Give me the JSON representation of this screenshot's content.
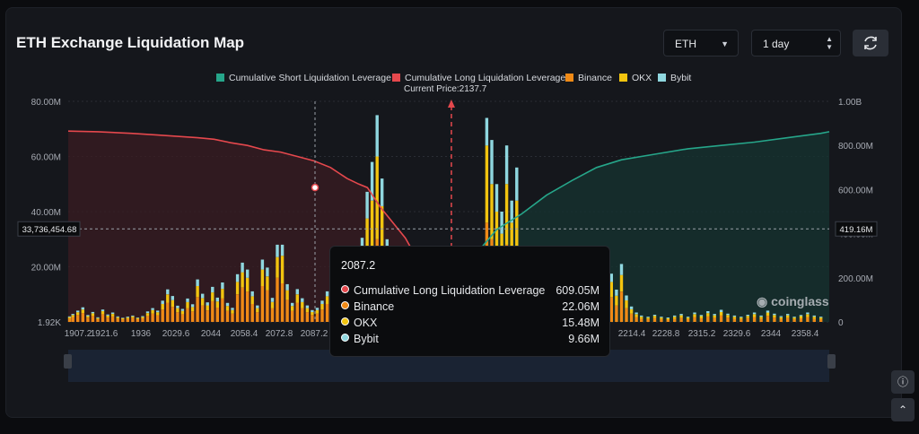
{
  "header": {
    "title": "ETH Exchange Liquidation Map"
  },
  "controls": {
    "symbol": "ETH",
    "timeframe": "1 day"
  },
  "legend": [
    {
      "label": "Cumulative Short Liquidation Leverage",
      "color": "#26a68a"
    },
    {
      "label": "Cumulative Long Liquidation Leverage",
      "color": "#e5484d"
    },
    {
      "label": "Binance",
      "color": "#f08a16"
    },
    {
      "label": "OKX",
      "color": "#f2c40f"
    },
    {
      "label": "Bybit",
      "color": "#8fd7df"
    }
  ],
  "current_price_label": "Current Price:2137.7",
  "crosshair": {
    "left_value": "33,736,454.68",
    "right_value": "419.16M"
  },
  "watermark": "coinglass",
  "tooltip": {
    "title": "2087.2",
    "rows": [
      {
        "name": "Cumulative Long Liquidation Leverage",
        "value": "609.05M",
        "color": "#e5484d"
      },
      {
        "name": "Binance",
        "value": "22.06M",
        "color": "#f08a16"
      },
      {
        "name": "OKX",
        "value": "15.48M",
        "color": "#f2c40f"
      },
      {
        "name": "Bybit",
        "value": "9.66M",
        "color": "#8fd7df"
      }
    ]
  },
  "chart_data": {
    "type": "bar",
    "title": "ETH Exchange Liquidation Map",
    "current_price": 2137.7,
    "x_tick_labels": [
      "1907.2",
      "1921.6",
      "1936",
      "2029.6",
      "2044",
      "2058.4",
      "2072.8",
      "2087.2",
      "2214.4",
      "2228.8",
      "2315.2",
      "2329.6",
      "2344",
      "2358.4"
    ],
    "left_axis": {
      "ticks": [
        "1.92K",
        "20.00M",
        "40.00M",
        "60.00M",
        "80.00M"
      ],
      "ylim": [
        0,
        80000000
      ]
    },
    "right_axis": {
      "ticks": [
        "0",
        "200.00M",
        "400.00M",
        "600.00M",
        "800.00M",
        "1.00B"
      ],
      "ylim": [
        0,
        1000000000
      ]
    },
    "x_range": [
      1907.2,
      2365
    ],
    "bars": [
      {
        "x": 1908,
        "binance": 1.2,
        "okx": 0.5,
        "bybit": 0.3
      },
      {
        "x": 1910,
        "binance": 1.8,
        "okx": 0.7,
        "bybit": 0.4
      },
      {
        "x": 1913,
        "binance": 2.5,
        "okx": 1.0,
        "bybit": 0.6
      },
      {
        "x": 1916,
        "binance": 3.2,
        "okx": 1.3,
        "bybit": 0.8
      },
      {
        "x": 1919,
        "binance": 1.5,
        "okx": 0.6,
        "bybit": 0.4
      },
      {
        "x": 1922,
        "binance": 2.2,
        "okx": 0.9,
        "bybit": 0.5
      },
      {
        "x": 1925,
        "binance": 1.0,
        "okx": 0.4,
        "bybit": 0.3
      },
      {
        "x": 1928,
        "binance": 2.8,
        "okx": 1.1,
        "bybit": 0.6
      },
      {
        "x": 1931,
        "binance": 1.6,
        "okx": 0.7,
        "bybit": 0.4
      },
      {
        "x": 1934,
        "binance": 2.0,
        "okx": 0.9,
        "bybit": 0.5
      },
      {
        "x": 1937,
        "binance": 1.2,
        "okx": 0.5,
        "bybit": 0.3
      },
      {
        "x": 1940,
        "binance": 0.9,
        "okx": 0.4,
        "bybit": 0.2
      },
      {
        "x": 1943,
        "binance": 1.1,
        "okx": 0.5,
        "bybit": 0.3
      },
      {
        "x": 1946,
        "binance": 1.4,
        "okx": 0.6,
        "bybit": 0.3
      },
      {
        "x": 1949,
        "binance": 1.0,
        "okx": 0.4,
        "bybit": 0.2
      },
      {
        "x": 1952,
        "binance": 1.3,
        "okx": 0.5,
        "bybit": 0.3
      },
      {
        "x": 1955,
        "binance": 2.2,
        "okx": 1.0,
        "bybit": 0.6
      },
      {
        "x": 1958,
        "binance": 3.0,
        "okx": 1.3,
        "bybit": 0.7
      },
      {
        "x": 1961,
        "binance": 2.4,
        "okx": 1.1,
        "bybit": 0.6
      },
      {
        "x": 1964,
        "binance": 4.5,
        "okx": 2.0,
        "bybit": 1.2
      },
      {
        "x": 1967,
        "binance": 7.0,
        "okx": 3.0,
        "bybit": 1.8
      },
      {
        "x": 1970,
        "binance": 5.5,
        "okx": 2.4,
        "bybit": 1.5
      },
      {
        "x": 1973,
        "binance": 3.5,
        "okx": 1.5,
        "bybit": 0.9
      },
      {
        "x": 1976,
        "binance": 2.8,
        "okx": 1.2,
        "bybit": 0.7
      },
      {
        "x": 1979,
        "binance": 5.0,
        "okx": 2.2,
        "bybit": 1.3
      },
      {
        "x": 1982,
        "binance": 3.8,
        "okx": 1.6,
        "bybit": 1.0
      },
      {
        "x": 1985,
        "binance": 9.0,
        "okx": 4.0,
        "bybit": 2.4
      },
      {
        "x": 1988,
        "binance": 6.0,
        "okx": 2.6,
        "bybit": 1.6
      },
      {
        "x": 1991,
        "binance": 4.2,
        "okx": 1.8,
        "bybit": 1.1
      },
      {
        "x": 1994,
        "binance": 7.5,
        "okx": 3.2,
        "bybit": 2.0
      },
      {
        "x": 1997,
        "binance": 5.2,
        "okx": 2.2,
        "bybit": 1.4
      },
      {
        "x": 2000,
        "binance": 8.5,
        "okx": 3.5,
        "bybit": 2.3
      },
      {
        "x": 2003,
        "binance": 4.0,
        "okx": 1.8,
        "bybit": 1.1
      },
      {
        "x": 2006,
        "binance": 3.0,
        "okx": 1.3,
        "bybit": 0.8
      },
      {
        "x": 2009,
        "binance": 10.0,
        "okx": 4.5,
        "bybit": 2.8
      },
      {
        "x": 2012,
        "binance": 12.5,
        "okx": 5.5,
        "bybit": 3.5
      },
      {
        "x": 2015,
        "binance": 11.0,
        "okx": 5.0,
        "bybit": 3.0
      },
      {
        "x": 2018,
        "binance": 6.5,
        "okx": 2.8,
        "bybit": 1.8
      },
      {
        "x": 2021,
        "binance": 3.5,
        "okx": 1.5,
        "bybit": 1.0
      },
      {
        "x": 2024,
        "binance": 13.0,
        "okx": 6.0,
        "bybit": 3.6
      },
      {
        "x": 2027,
        "binance": 11.5,
        "okx": 5.0,
        "bybit": 3.2
      },
      {
        "x": 2030,
        "binance": 5.0,
        "okx": 2.2,
        "bybit": 1.5
      },
      {
        "x": 2033,
        "binance": 16.0,
        "okx": 7.5,
        "bybit": 4.5
      },
      {
        "x": 2036,
        "binance": 14.0,
        "okx": 10.0,
        "bybit": 4.0
      },
      {
        "x": 2039,
        "binance": 8.0,
        "okx": 3.5,
        "bybit": 2.2
      },
      {
        "x": 2042,
        "binance": 4.0,
        "okx": 1.8,
        "bybit": 1.1
      },
      {
        "x": 2045,
        "binance": 7.0,
        "okx": 3.0,
        "bybit": 1.9
      },
      {
        "x": 2048,
        "binance": 5.0,
        "okx": 2.2,
        "bybit": 1.4
      },
      {
        "x": 2051,
        "binance": 3.5,
        "okx": 1.5,
        "bybit": 1.0
      },
      {
        "x": 2054,
        "binance": 2.5,
        "okx": 1.1,
        "bybit": 0.7
      },
      {
        "x": 2057,
        "binance": 3.0,
        "okx": 1.3,
        "bybit": 0.8
      },
      {
        "x": 2060,
        "binance": 4.5,
        "okx": 2.0,
        "bybit": 1.2
      },
      {
        "x": 2063,
        "binance": 6.5,
        "okx": 2.8,
        "bybit": 1.8
      },
      {
        "x": 2066,
        "binance": 3.5,
        "okx": 1.5,
        "bybit": 1.0
      },
      {
        "x": 2069,
        "binance": 5.5,
        "okx": 2.4,
        "bybit": 1.5
      },
      {
        "x": 2072,
        "binance": 4.0,
        "okx": 1.8,
        "bybit": 1.1
      },
      {
        "x": 2075,
        "binance": 9.0,
        "okx": 4.0,
        "bybit": 2.5
      },
      {
        "x": 2078,
        "binance": 11.0,
        "okx": 6.0,
        "bybit": 3.5
      },
      {
        "x": 2081,
        "binance": 13.0,
        "okx": 7.0,
        "bybit": 4.0
      },
      {
        "x": 2084,
        "binance": 18.0,
        "okx": 8.0,
        "bybit": 4.5
      },
      {
        "x": 2087,
        "binance": 22.06,
        "okx": 15.48,
        "bybit": 9.66
      },
      {
        "x": 2090,
        "binance": 20.0,
        "okx": 24.0,
        "bybit": 14.0
      },
      {
        "x": 2093,
        "binance": 30.0,
        "okx": 30.0,
        "bybit": 15.0
      },
      {
        "x": 2096,
        "binance": 22.0,
        "okx": 20.0,
        "bybit": 10.0
      },
      {
        "x": 2099,
        "binance": 14.0,
        "okx": 10.0,
        "bybit": 6.0
      },
      {
        "x": 2102,
        "binance": 7.0,
        "okx": 6.0,
        "bybit": 4.0
      },
      {
        "x": 2105,
        "binance": 12.0,
        "okx": 8.0,
        "bybit": 6.0
      },
      {
        "x": 2108,
        "binance": 8.0,
        "okx": 6.0,
        "bybit": 4.0
      },
      {
        "x": 2111,
        "binance": 10.0,
        "okx": 8.0,
        "bybit": 5.0
      },
      {
        "x": 2114,
        "binance": 6.0,
        "okx": 4.0,
        "bybit": 3.0
      },
      {
        "x": 2117,
        "binance": 8.0,
        "okx": 6.0,
        "bybit": 4.0
      },
      {
        "x": 2120,
        "binance": 5.0,
        "okx": 4.0,
        "bybit": 2.5
      },
      {
        "x": 2123,
        "binance": 7.0,
        "okx": 5.0,
        "bybit": 3.0
      },
      {
        "x": 2126,
        "binance": 4.0,
        "okx": 3.0,
        "bybit": 2.0
      },
      {
        "x": 2129,
        "binance": 5.5,
        "okx": 4.0,
        "bybit": 2.5
      },
      {
        "x": 2132,
        "binance": 12.0,
        "okx": 11.0,
        "bybit": 0.5
      },
      {
        "x": 2135,
        "binance": 8.0,
        "okx": 6.0,
        "bybit": 4.0
      },
      {
        "x": 2138,
        "binance": 6.0,
        "okx": 5.0,
        "bybit": 3.0
      },
      {
        "x": 2141,
        "binance": 4.0,
        "okx": 3.0,
        "bybit": 2.0
      },
      {
        "x": 2144,
        "binance": 3.0,
        "okx": 2.0,
        "bybit": 1.5
      },
      {
        "x": 2147,
        "binance": 4.5,
        "okx": 3.0,
        "bybit": 2.0
      },
      {
        "x": 2150,
        "binance": 6.0,
        "okx": 4.0,
        "bybit": 3.0
      },
      {
        "x": 2153,
        "binance": 7.0,
        "okx": 5.0,
        "bybit": 3.5
      },
      {
        "x": 2156,
        "binance": 10.0,
        "okx": 8.0,
        "bybit": 5.0
      },
      {
        "x": 2159,
        "binance": 36.0,
        "okx": 28.0,
        "bybit": 10.0
      },
      {
        "x": 2162,
        "binance": 30.0,
        "okx": 20.0,
        "bybit": 16.0
      },
      {
        "x": 2165,
        "binance": 22.0,
        "okx": 18.0,
        "bybit": 10.0
      },
      {
        "x": 2168,
        "binance": 18.0,
        "okx": 14.0,
        "bybit": 8.0
      },
      {
        "x": 2171,
        "binance": 28.0,
        "okx": 22.0,
        "bybit": 14.0
      },
      {
        "x": 2174,
        "binance": 20.0,
        "okx": 16.0,
        "bybit": 8.0
      },
      {
        "x": 2177,
        "binance": 24.0,
        "okx": 20.0,
        "bybit": 12.0
      },
      {
        "x": 2180,
        "binance": 8.0,
        "okx": 6.0,
        "bybit": 4.0
      },
      {
        "x": 2183,
        "binance": 4.0,
        "okx": 3.0,
        "bybit": 2.0
      },
      {
        "x": 2186,
        "binance": 3.0,
        "okx": 2.0,
        "bybit": 1.5
      },
      {
        "x": 2189,
        "binance": 2.5,
        "okx": 1.5,
        "bybit": 1.0
      },
      {
        "x": 2192,
        "binance": 1.8,
        "okx": 1.2,
        "bybit": 0.8
      },
      {
        "x": 2195,
        "binance": 2.2,
        "okx": 1.3,
        "bybit": 0.9
      },
      {
        "x": 2198,
        "binance": 1.5,
        "okx": 1.0,
        "bybit": 0.6
      },
      {
        "x": 2201,
        "binance": 2.8,
        "okx": 1.8,
        "bybit": 1.0
      },
      {
        "x": 2204,
        "binance": 2.0,
        "okx": 1.2,
        "bybit": 0.8
      },
      {
        "x": 2207,
        "binance": 3.5,
        "okx": 2.0,
        "bybit": 1.2
      },
      {
        "x": 2210,
        "binance": 6.5,
        "okx": 4.0,
        "bybit": 2.5
      },
      {
        "x": 2213,
        "binance": 4.5,
        "okx": 2.8,
        "bybit": 1.8
      },
      {
        "x": 2216,
        "binance": 8.0,
        "okx": 4.5,
        "bybit": 3.0
      },
      {
        "x": 2219,
        "binance": 12.0,
        "okx": 7.0,
        "bybit": 4.5
      },
      {
        "x": 2222,
        "binance": 5.5,
        "okx": 3.0,
        "bybit": 2.0
      },
      {
        "x": 2225,
        "binance": 3.5,
        "okx": 2.0,
        "bybit": 1.5
      },
      {
        "x": 2228,
        "binance": 7.0,
        "okx": 4.0,
        "bybit": 2.5
      },
      {
        "x": 2231,
        "binance": 5.0,
        "okx": 3.0,
        "bybit": 2.0
      },
      {
        "x": 2234,
        "binance": 9.0,
        "okx": 5.5,
        "bybit": 3.0
      },
      {
        "x": 2237,
        "binance": 6.0,
        "okx": 3.5,
        "bybit": 2.2
      },
      {
        "x": 2240,
        "binance": 11.0,
        "okx": 6.0,
        "bybit": 4.0
      },
      {
        "x": 2243,
        "binance": 5.0,
        "okx": 2.8,
        "bybit": 1.8
      },
      {
        "x": 2246,
        "binance": 3.0,
        "okx": 1.6,
        "bybit": 1.0
      },
      {
        "x": 2249,
        "binance": 1.8,
        "okx": 1.0,
        "bybit": 0.6
      },
      {
        "x": 2252,
        "binance": 1.2,
        "okx": 0.7,
        "bybit": 0.4
      },
      {
        "x": 2256,
        "binance": 1.0,
        "okx": 0.6,
        "bybit": 0.3
      },
      {
        "x": 2260,
        "binance": 1.4,
        "okx": 0.8,
        "bybit": 0.4
      },
      {
        "x": 2264,
        "binance": 1.0,
        "okx": 0.6,
        "bybit": 0.3
      },
      {
        "x": 2268,
        "binance": 0.8,
        "okx": 0.5,
        "bybit": 0.3
      },
      {
        "x": 2272,
        "binance": 1.2,
        "okx": 0.7,
        "bybit": 0.4
      },
      {
        "x": 2276,
        "binance": 1.5,
        "okx": 0.9,
        "bybit": 0.5
      },
      {
        "x": 2280,
        "binance": 1.0,
        "okx": 0.6,
        "bybit": 0.3
      },
      {
        "x": 2284,
        "binance": 1.8,
        "okx": 1.0,
        "bybit": 0.6
      },
      {
        "x": 2288,
        "binance": 1.3,
        "okx": 0.8,
        "bybit": 0.4
      },
      {
        "x": 2292,
        "binance": 2.0,
        "okx": 1.2,
        "bybit": 0.7
      },
      {
        "x": 2296,
        "binance": 1.5,
        "okx": 0.9,
        "bybit": 0.5
      },
      {
        "x": 2300,
        "binance": 2.3,
        "okx": 1.3,
        "bybit": 0.8
      },
      {
        "x": 2304,
        "binance": 1.6,
        "okx": 0.9,
        "bybit": 0.5
      },
      {
        "x": 2308,
        "binance": 1.2,
        "okx": 0.7,
        "bybit": 0.4
      },
      {
        "x": 2312,
        "binance": 1.0,
        "okx": 0.6,
        "bybit": 0.3
      },
      {
        "x": 2316,
        "binance": 1.4,
        "okx": 0.8,
        "bybit": 0.4
      },
      {
        "x": 2320,
        "binance": 1.8,
        "okx": 1.0,
        "bybit": 0.6
      },
      {
        "x": 2324,
        "binance": 1.2,
        "okx": 0.7,
        "bybit": 0.4
      },
      {
        "x": 2328,
        "binance": 2.2,
        "okx": 1.2,
        "bybit": 0.7
      },
      {
        "x": 2332,
        "binance": 1.6,
        "okx": 0.9,
        "bybit": 0.5
      },
      {
        "x": 2336,
        "binance": 1.1,
        "okx": 0.6,
        "bybit": 0.4
      },
      {
        "x": 2340,
        "binance": 1.5,
        "okx": 0.9,
        "bybit": 0.5
      },
      {
        "x": 2344,
        "binance": 1.0,
        "okx": 0.6,
        "bybit": 0.3
      },
      {
        "x": 2348,
        "binance": 1.3,
        "okx": 0.8,
        "bybit": 0.4
      },
      {
        "x": 2352,
        "binance": 1.8,
        "okx": 1.0,
        "bybit": 0.6
      },
      {
        "x": 2356,
        "binance": 1.2,
        "okx": 0.7,
        "bybit": 0.4
      },
      {
        "x": 2360,
        "binance": 1.0,
        "okx": 0.6,
        "bybit": 0.3
      }
    ],
    "bars_unit": "M",
    "long_cumulative": {
      "x": [
        1907.2,
        1925,
        1945,
        1960,
        1972,
        1985,
        1995,
        2005,
        2015,
        2025,
        2035,
        2045,
        2055,
        2065,
        2075,
        2082,
        2087.2,
        2095,
        2110,
        2125,
        2137.7
      ],
      "y": [
        865,
        862,
        855,
        848,
        842,
        835,
        828,
        812,
        800,
        780,
        770,
        750,
        730,
        700,
        650,
        625,
        609.05,
        520,
        380,
        180,
        0
      ]
    },
    "short_cumulative": {
      "x": [
        2137.7,
        2145,
        2155,
        2165,
        2180,
        2195,
        2210,
        2225,
        2240,
        2260,
        2280,
        2300,
        2320,
        2340,
        2360,
        2365
      ],
      "y": [
        0,
        150,
        330,
        419.16,
        490,
        575,
        640,
        700,
        735,
        760,
        785,
        800,
        815,
        835,
        855,
        862
      ]
    },
    "cumulative_unit": "M"
  }
}
